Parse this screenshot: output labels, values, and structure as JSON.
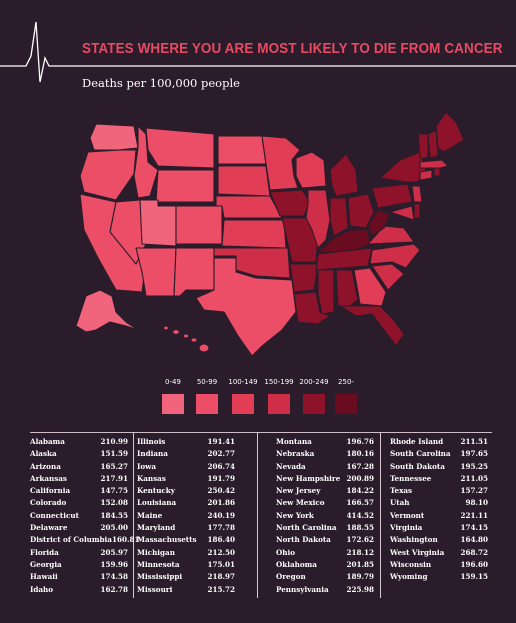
{
  "header": {
    "title": "STATES WHERE YOU ARE MOST LIKELY TO DIE FROM CANCER",
    "subtitle": "Deaths per 100,000 people"
  },
  "colors": {
    "background": "#2a1c2a",
    "title": "#e84a63",
    "bins": [
      "#f1657c",
      "#ec4d67",
      "#e23d57",
      "#cf2e48",
      "#8e1229",
      "#6a0c20"
    ]
  },
  "legend": {
    "labels": [
      "0-49",
      "50-99",
      "100-149",
      "150-199",
      "200-249",
      "250-"
    ]
  },
  "table": {
    "columns": [
      [
        {
          "state": "Alabama",
          "value": "210.99"
        },
        {
          "state": "Alaska",
          "value": "151.59"
        },
        {
          "state": "Arizona",
          "value": "165.27"
        },
        {
          "state": "Arkansas",
          "value": "217.91"
        },
        {
          "state": "California",
          "value": "147.75"
        },
        {
          "state": "Colorado",
          "value": "152.08"
        },
        {
          "state": "Connecticut",
          "value": "184.55"
        },
        {
          "state": "Delaware",
          "value": "205.00"
        },
        {
          "state": "District of Columbia",
          "value": "160.81"
        },
        {
          "state": "Florida",
          "value": "205.97"
        },
        {
          "state": "Georgia",
          "value": "159.96"
        },
        {
          "state": "Hawaii",
          "value": "174.58"
        },
        {
          "state": "Idaho",
          "value": "162.78"
        }
      ],
      [
        {
          "state": "Illinois",
          "value": "191.41"
        },
        {
          "state": "Indiana",
          "value": "202.77"
        },
        {
          "state": "Iowa",
          "value": "206.74"
        },
        {
          "state": "Kansas",
          "value": "191.79"
        },
        {
          "state": "Kentucky",
          "value": "250.42"
        },
        {
          "state": "Louisiana",
          "value": "201.86"
        },
        {
          "state": "Maine",
          "value": "240.19"
        },
        {
          "state": "Maryland",
          "value": "177.78"
        },
        {
          "state": "Massachusetts",
          "value": "186.40"
        },
        {
          "state": "Michigan",
          "value": "212.50"
        },
        {
          "state": "Minnesota",
          "value": "175.01"
        },
        {
          "state": "Mississippi",
          "value": "218.97"
        },
        {
          "state": "Missouri",
          "value": "215.72"
        }
      ],
      [
        {
          "state": "Montana",
          "value": "196.76"
        },
        {
          "state": "Nebraska",
          "value": "180.16"
        },
        {
          "state": "Nevada",
          "value": "167.28"
        },
        {
          "state": "New Hampshire",
          "value": "200.89"
        },
        {
          "state": "New Jersey",
          "value": "184.22"
        },
        {
          "state": "New Mexico",
          "value": "166.57"
        },
        {
          "state": "New York",
          "value": "414.52"
        },
        {
          "state": "North Carolina",
          "value": "188.55"
        },
        {
          "state": "North Dakota",
          "value": "172.62"
        },
        {
          "state": "Ohio",
          "value": "218.12"
        },
        {
          "state": "Oklahoma",
          "value": "201.85"
        },
        {
          "state": "Oregon",
          "value": "189.79"
        },
        {
          "state": "Pennsylvania",
          "value": "225.98"
        }
      ],
      [
        {
          "state": "Rhode Island",
          "value": "211.51"
        },
        {
          "state": "South Carolina",
          "value": "197.65"
        },
        {
          "state": "South Dakota",
          "value": "195.25"
        },
        {
          "state": "Tennessee",
          "value": "211.05"
        },
        {
          "state": "Texas",
          "value": "157.27"
        },
        {
          "state": "Utah",
          "value": "98.10"
        },
        {
          "state": "Vermont",
          "value": "221.11"
        },
        {
          "state": "Virginia",
          "value": "174.15"
        },
        {
          "state": "Washington",
          "value": "164.80"
        },
        {
          "state": "West Virginia",
          "value": "268.72"
        },
        {
          "state": "Wisconsin",
          "value": "196.60"
        },
        {
          "state": "Wyoming",
          "value": "159.15"
        }
      ]
    ]
  }
}
